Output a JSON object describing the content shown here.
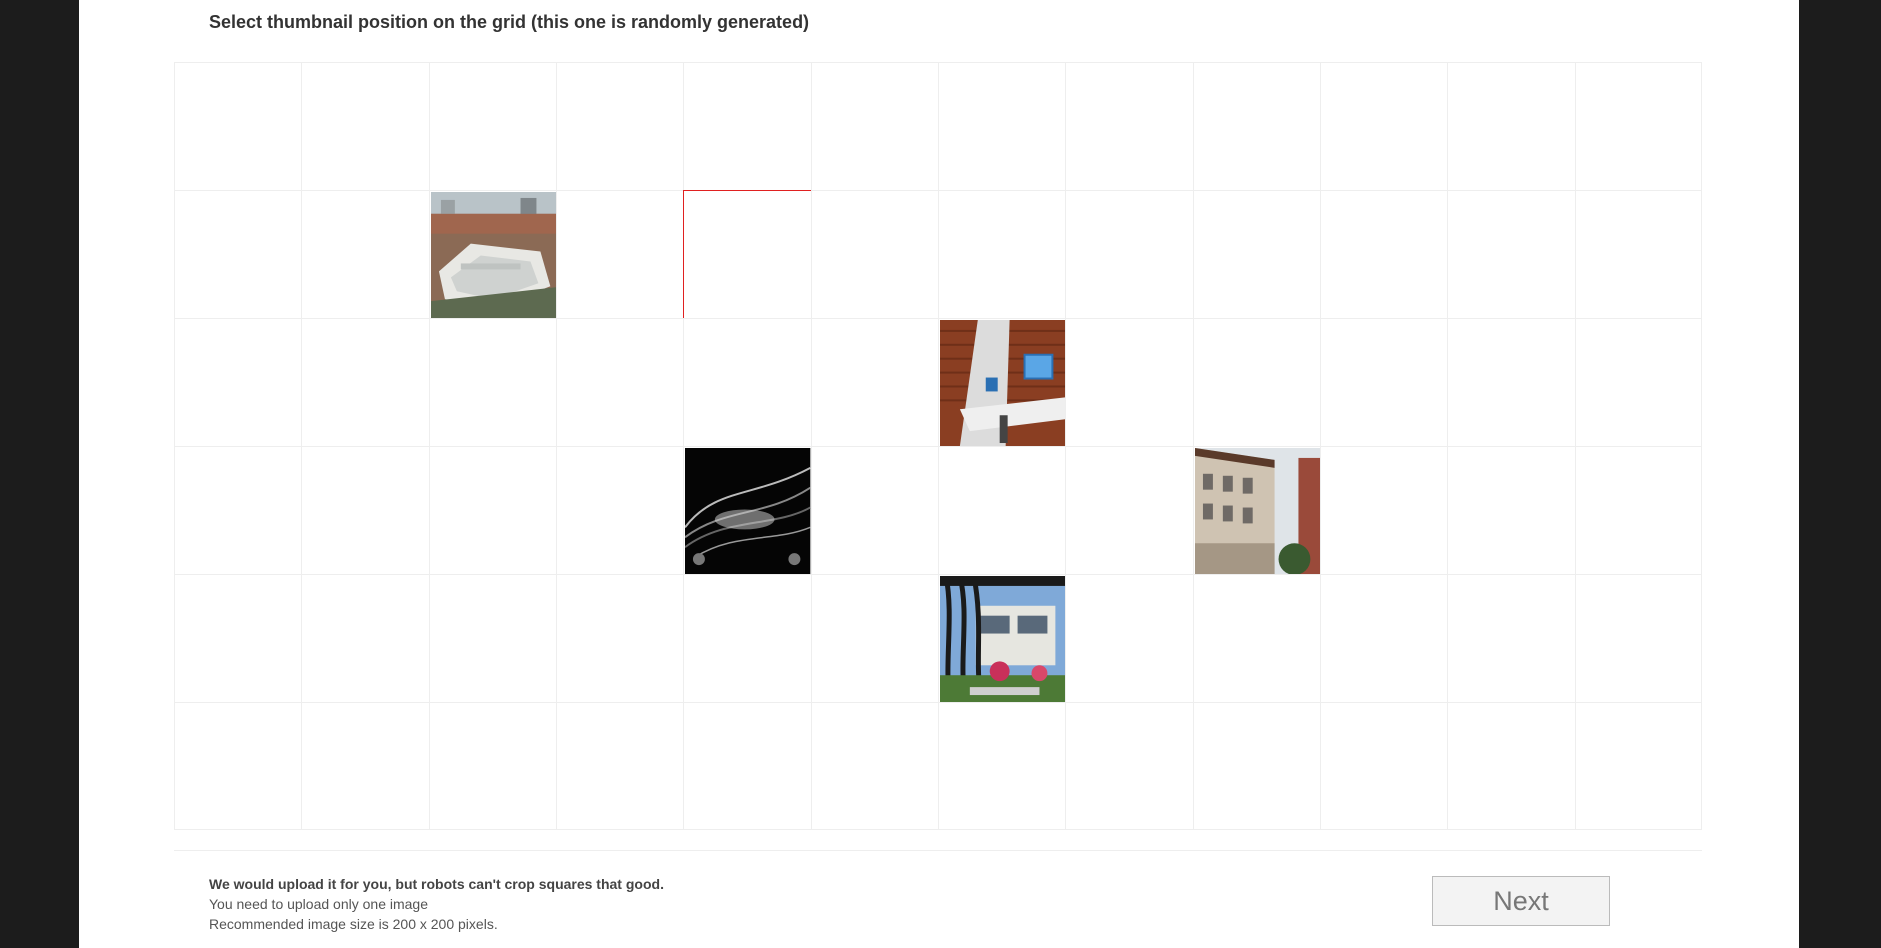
{
  "header": {
    "title": "Select thumbnail position on the grid (this one is randomly generated)"
  },
  "grid": {
    "columns": 12,
    "rows": 6,
    "selected_cell": {
      "row": 2,
      "col": 5
    },
    "thumbnails": [
      {
        "row": 2,
        "col": 3,
        "name": "aerial-building-thumbnail"
      },
      {
        "row": 3,
        "col": 7,
        "name": "office-interior-thumbnail"
      },
      {
        "row": 4,
        "col": 5,
        "name": "abstract-render-thumbnail"
      },
      {
        "row": 4,
        "col": 9,
        "name": "historic-facade-thumbnail"
      },
      {
        "row": 5,
        "col": 7,
        "name": "modern-house-thumbnail"
      }
    ]
  },
  "footer": {
    "line1": "We would upload it for you, but robots can't crop squares that good.",
    "line2": "You need to upload only one image",
    "line3": "Recommended image size is 200 x 200 pixels."
  },
  "actions": {
    "next_label": "Next"
  }
}
